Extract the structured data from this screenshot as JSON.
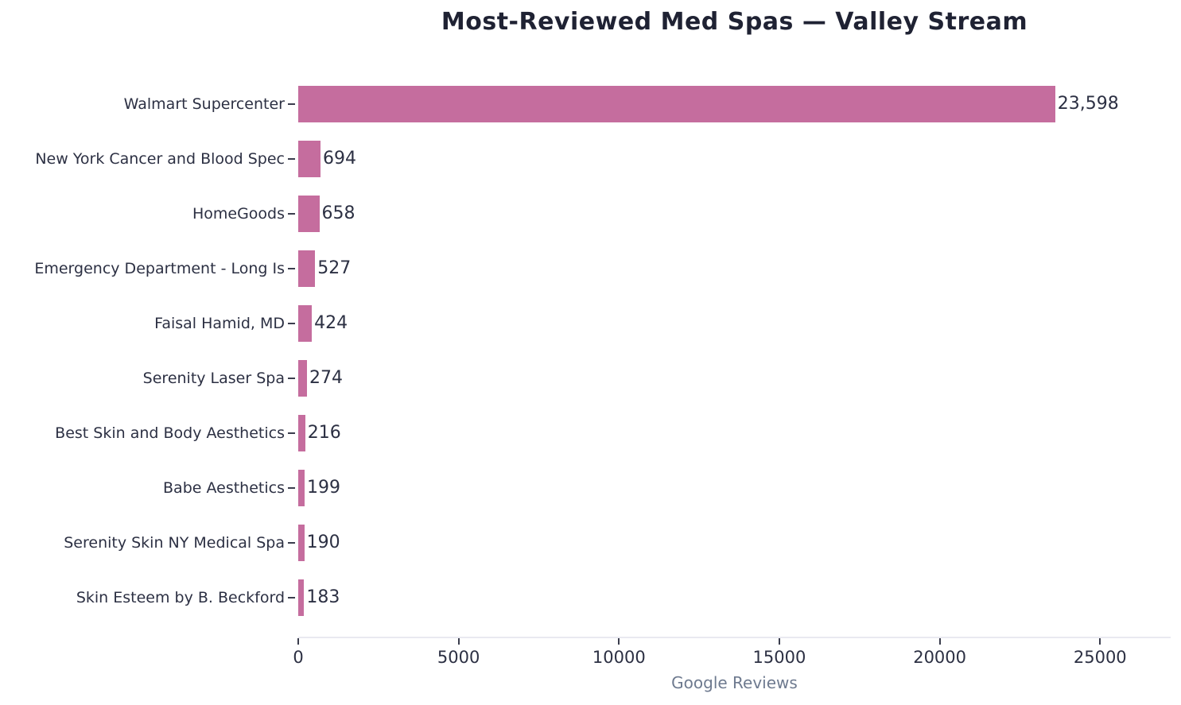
{
  "title": "Most-Reviewed Med Spas — Valley Stream",
  "colors": {
    "background": "#ffffff",
    "bar": "#c56d9e",
    "title_text": "#1f2233",
    "label_text": "#2c3043",
    "tick_mark": "#3a3d4d",
    "axis_line": "#e9e9f0",
    "xaxis_title_text": "#6e7a8f"
  },
  "chart_data": {
    "type": "bar",
    "orientation": "horizontal",
    "title": "Most-Reviewed Med Spas — Valley Stream",
    "xlabel": "Google Reviews",
    "ylabel": "",
    "categories": [
      "Walmart Supercenter",
      "New York Cancer and Blood Spec",
      "HomeGoods",
      "Emergency Department - Long Is",
      "Faisal Hamid, MD",
      "Serenity Laser Spa",
      "Best Skin and Body Aesthetics",
      "Babe Aesthetics",
      "Serenity Skin NY Medical Spa",
      "Skin Esteem by B. Beckford"
    ],
    "values": [
      23598,
      694,
      658,
      527,
      424,
      274,
      216,
      199,
      190,
      183
    ],
    "value_labels": [
      "23,598",
      "694",
      "658",
      "527",
      "424",
      "274",
      "216",
      "199",
      "190",
      "183"
    ],
    "xlim": [
      0,
      27200
    ],
    "xticks": [
      0,
      5000,
      10000,
      15000,
      20000,
      25000
    ],
    "xtick_labels": [
      "0",
      "5000",
      "10000",
      "15000",
      "20000",
      "25000"
    ],
    "grid": false,
    "legend": null,
    "bar_color": "#c56d9e"
  }
}
